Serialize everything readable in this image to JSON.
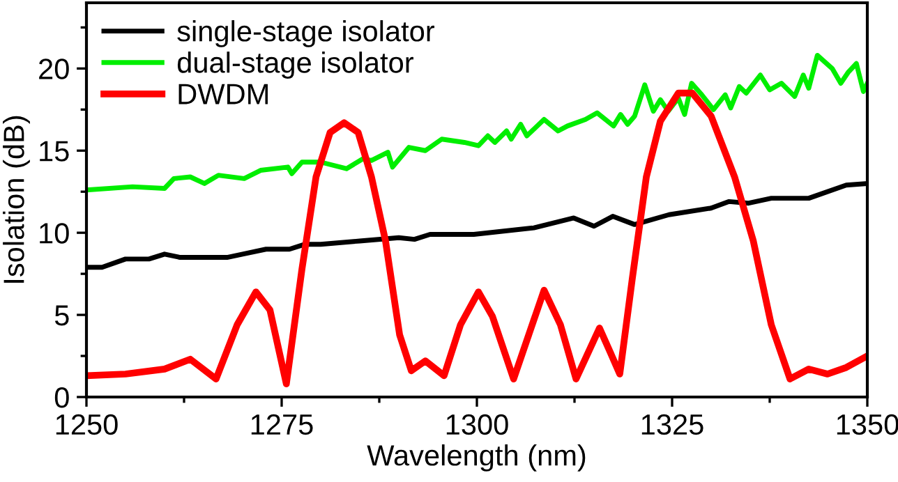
{
  "chart_data": {
    "type": "line",
    "xlabel": "Wavelength (nm)",
    "ylabel": "Isolation (dB)",
    "xlim": [
      1250,
      1350
    ],
    "ylim": [
      0,
      24
    ],
    "xticks": [
      1250,
      {
        "value": 1262.5,
        "label": null
      },
      1275,
      {
        "value": 1287.5,
        "label": null
      },
      1300,
      {
        "value": 1312.5,
        "label": null
      },
      1325,
      {
        "value": 1337.5,
        "label": null
      },
      1350
    ],
    "yticks": [
      0,
      {
        "value": 2.5,
        "label": null
      },
      5,
      {
        "value": 7.5,
        "label": null
      },
      10,
      {
        "value": 12.5,
        "label": null
      },
      15,
      {
        "value": 17.5,
        "label": null
      },
      20,
      {
        "value": 22.5,
        "label": null
      }
    ],
    "grid": false,
    "legend": "top left",
    "marker": "none",
    "line_style": "solid",
    "series": [
      {
        "name": "single-stage isolator",
        "color": "#000000",
        "x": [
          1250,
          1252,
          1255,
          1258,
          1260,
          1262,
          1265,
          1268,
          1270,
          1273,
          1276,
          1278,
          1280,
          1285,
          1290,
          1292,
          1294,
          1299.6,
          1307.3,
          1312.4,
          1315,
          1317.4,
          1320.2,
          1324.6,
          1330,
          1332.3,
          1334.8,
          1337.7,
          1342.5,
          1347.3,
          1350
        ],
        "values": [
          7.9,
          7.9,
          8.4,
          8.4,
          8.7,
          8.5,
          8.5,
          8.5,
          8.7,
          9.0,
          9.0,
          9.3,
          9.3,
          9.5,
          9.7,
          9.6,
          9.9,
          9.9,
          10.3,
          10.9,
          10.4,
          11.0,
          10.5,
          11.1,
          11.5,
          11.9,
          11.8,
          12.1,
          12.1,
          12.9,
          13.0
        ]
      },
      {
        "name": "dual-stage isolator",
        "color": "#00ee00",
        "x": [
          1250,
          1255.9,
          1260,
          1261.2,
          1263.3,
          1265.1,
          1266.9,
          1270.2,
          1272.3,
          1275.8,
          1276.3,
          1277.6,
          1280,
          1283.3,
          1285.4,
          1286.5,
          1288.6,
          1289.2,
          1291.3,
          1293.4,
          1295.5,
          1298.4,
          1300.2,
          1301.4,
          1302.3,
          1303.8,
          1304.4,
          1305.6,
          1306.4,
          1308.6,
          1310.4,
          1311.6,
          1313.9,
          1315.4,
          1317.5,
          1318.4,
          1319.3,
          1320.2,
          1321.5,
          1322.6,
          1323.5,
          1324.5,
          1325.8,
          1326.6,
          1327.5,
          1328.8,
          1330.3,
          1331.8,
          1332.5,
          1333.6,
          1334.5,
          1336.3,
          1337.5,
          1339,
          1340.7,
          1341.8,
          1342.5,
          1343.6,
          1345.5,
          1346.6,
          1347.6,
          1348.6,
          1349.5,
          1350
        ],
        "values": [
          12.6,
          12.8,
          12.7,
          13.3,
          13.4,
          13.0,
          13.5,
          13.3,
          13.8,
          14.0,
          13.6,
          14.3,
          14.3,
          13.9,
          14.5,
          14.4,
          14.9,
          14.0,
          15.2,
          15.0,
          15.7,
          15.5,
          15.3,
          15.9,
          15.5,
          16.2,
          15.7,
          16.6,
          15.9,
          16.9,
          16.2,
          16.5,
          16.9,
          17.3,
          16.5,
          17.2,
          16.6,
          17.1,
          19.0,
          17.4,
          18.1,
          17.4,
          18.2,
          17.2,
          19.1,
          18.4,
          17.5,
          18.4,
          17.6,
          18.9,
          18.5,
          19.6,
          18.7,
          19.1,
          18.3,
          19.6,
          18.8,
          20.8,
          20.0,
          19.1,
          19.8,
          20.3,
          18.6,
          19.1
        ]
      },
      {
        "name": "DWDM",
        "color": "#ff0000",
        "x": [
          1250,
          1255,
          1260,
          1263.3,
          1266.6,
          1269.3,
          1271.7,
          1273.5,
          1275.6,
          1277.6,
          1279.4,
          1281.2,
          1283,
          1284.8,
          1286.5,
          1288.3,
          1290.1,
          1291.6,
          1293.4,
          1295.8,
          1297.9,
          1300.2,
          1302,
          1304.7,
          1308.6,
          1310.7,
          1312.7,
          1315.7,
          1317.1,
          1318.3,
          1319.9,
          1321.7,
          1323.5,
          1325.8,
          1327.6,
          1330,
          1333,
          1335.4,
          1337.7,
          1340.1,
          1342.5,
          1344.9,
          1347.3,
          1350
        ],
        "values": [
          1.3,
          1.4,
          1.7,
          2.3,
          1.1,
          4.4,
          6.4,
          5.3,
          0.8,
          7.8,
          13.4,
          16.1,
          16.7,
          16.1,
          13.4,
          9.5,
          3.8,
          1.6,
          2.2,
          1.3,
          4.4,
          6.4,
          4.9,
          1.1,
          6.5,
          4.4,
          1.1,
          4.2,
          2.7,
          1.4,
          7.2,
          13.4,
          16.8,
          18.5,
          18.5,
          17.1,
          13.4,
          9.5,
          4.4,
          1.1,
          1.7,
          1.4,
          1.8,
          2.5
        ]
      }
    ]
  }
}
